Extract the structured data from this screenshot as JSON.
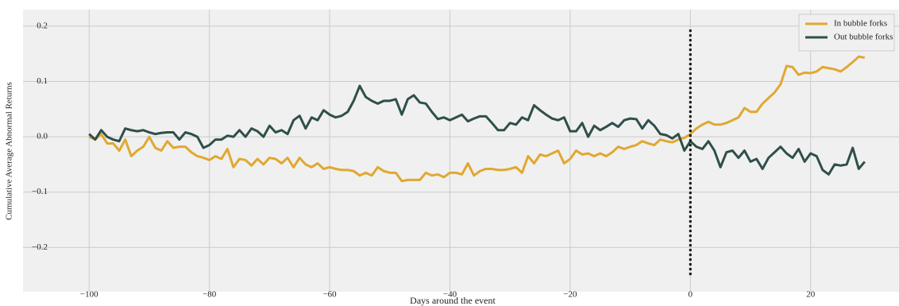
{
  "chart_data": {
    "type": "line",
    "x_label": "Days around the event",
    "y_label": "Cumulative Average Abnormal Returns",
    "x": [
      -100,
      -99,
      -98,
      -97,
      -96,
      -95,
      -94,
      -93,
      -92,
      -91,
      -90,
      -89,
      -88,
      -87,
      -86,
      -85,
      -84,
      -83,
      -82,
      -81,
      -80,
      -79,
      -78,
      -77,
      -76,
      -75,
      -74,
      -73,
      -72,
      -71,
      -70,
      -69,
      -68,
      -67,
      -66,
      -65,
      -64,
      -63,
      -62,
      -61,
      -60,
      -59,
      -58,
      -57,
      -56,
      -55,
      -54,
      -53,
      -52,
      -51,
      -50,
      -49,
      -48,
      -47,
      -46,
      -45,
      -44,
      -43,
      -42,
      -41,
      -40,
      -39,
      -38,
      -37,
      -36,
      -35,
      -34,
      -33,
      -32,
      -31,
      -30,
      -29,
      -28,
      -27,
      -26,
      -25,
      -24,
      -23,
      -22,
      -21,
      -20,
      -19,
      -18,
      -17,
      -16,
      -15,
      -14,
      -13,
      -12,
      -11,
      -10,
      -9,
      -8,
      -7,
      -6,
      -5,
      -4,
      -3,
      -2,
      -1,
      0,
      1,
      2,
      3,
      4,
      5,
      6,
      7,
      8,
      9,
      10,
      11,
      12,
      13,
      14,
      15,
      16,
      17,
      18,
      19,
      20,
      21,
      22,
      23,
      24,
      25,
      26,
      27,
      28,
      29
    ],
    "series": [
      {
        "name": "In bubble forks",
        "color": "#e0a830",
        "values": [
          0,
          -0.005,
          0.005,
          -0.012,
          -0.012,
          -0.025,
          -0.005,
          -0.035,
          -0.025,
          -0.018,
          0,
          -0.02,
          -0.025,
          -0.008,
          -0.02,
          -0.018,
          -0.018,
          -0.028,
          -0.035,
          -0.038,
          -0.042,
          -0.035,
          -0.04,
          -0.022,
          -0.055,
          -0.04,
          -0.042,
          -0.052,
          -0.04,
          -0.05,
          -0.038,
          -0.04,
          -0.048,
          -0.038,
          -0.055,
          -0.038,
          -0.05,
          -0.055,
          -0.048,
          -0.058,
          -0.055,
          -0.058,
          -0.06,
          -0.06,
          -0.062,
          -0.07,
          -0.065,
          -0.07,
          -0.055,
          -0.062,
          -0.065,
          -0.065,
          -0.08,
          -0.078,
          -0.078,
          -0.078,
          -0.065,
          -0.07,
          -0.068,
          -0.073,
          -0.065,
          -0.065,
          -0.068,
          -0.048,
          -0.07,
          -0.062,
          -0.058,
          -0.058,
          -0.06,
          -0.06,
          -0.058,
          -0.055,
          -0.065,
          -0.035,
          -0.048,
          -0.032,
          -0.035,
          -0.03,
          -0.025,
          -0.048,
          -0.04,
          -0.025,
          -0.032,
          -0.03,
          -0.035,
          -0.03,
          -0.035,
          -0.028,
          -0.018,
          -0.022,
          -0.018,
          -0.015,
          -0.008,
          -0.012,
          -0.015,
          -0.005,
          -0.008,
          -0.01,
          -0.005,
          -0.002,
          0.005,
          0.015,
          0.022,
          0.027,
          0.022,
          0.022,
          0.025,
          0.03,
          0.035,
          0.052,
          0.045,
          0.045,
          0.06,
          0.07,
          0.08,
          0.095,
          0.128,
          0.126,
          0.112,
          0.116,
          0.115,
          0.118,
          0.126,
          0.124,
          0.122,
          0.118,
          0.126,
          0.135,
          0.145,
          0.143
        ]
      },
      {
        "name": "Out bubble forks",
        "color": "#2f4f4a",
        "values": [
          0.005,
          -0.005,
          0.012,
          0,
          -0.005,
          -0.008,
          0.015,
          0.012,
          0.01,
          0.012,
          0.008,
          0.005,
          0.007,
          0.008,
          0.008,
          -0.005,
          0.008,
          0.005,
          0,
          -0.02,
          -0.015,
          -0.005,
          -0.005,
          0.002,
          0,
          0.012,
          0,
          0.015,
          0.01,
          0,
          0.02,
          0.008,
          0.012,
          0.005,
          0.03,
          0.038,
          0.015,
          0.035,
          0.03,
          0.048,
          0.04,
          0.035,
          0.038,
          0.045,
          0.065,
          0.092,
          0.072,
          0.065,
          0.06,
          0.065,
          0.065,
          0.068,
          0.04,
          0.068,
          0.075,
          0.062,
          0.06,
          0.045,
          0.032,
          0.035,
          0.03,
          0.035,
          0.04,
          0.028,
          0.033,
          0.037,
          0.037,
          0.025,
          0.012,
          0.012,
          0.025,
          0.022,
          0.035,
          0.03,
          0.057,
          0.048,
          0.04,
          0.033,
          0.03,
          0.035,
          0.01,
          0.01,
          0.025,
          0,
          0.02,
          0.012,
          0.018,
          0.025,
          0.018,
          0.03,
          0.033,
          0.032,
          0.015,
          0.03,
          0.02,
          0.005,
          0.003,
          -0.003,
          0.005,
          -0.025,
          -0.008,
          -0.018,
          -0.022,
          -0.008,
          -0.025,
          -0.055,
          -0.028,
          -0.025,
          -0.038,
          -0.025,
          -0.045,
          -0.04,
          -0.058,
          -0.038,
          -0.028,
          -0.018,
          -0.03,
          -0.038,
          -0.022,
          -0.045,
          -0.03,
          -0.035,
          -0.06,
          -0.068,
          -0.05,
          -0.052,
          -0.05,
          -0.02,
          -0.058,
          -0.045
        ]
      }
    ],
    "event_line": {
      "x": 0,
      "ymin": -0.25,
      "ymax": 0.195
    },
    "xlim": [
      -111,
      34.7
    ],
    "ylim": [
      -0.28,
      0.23
    ],
    "xticks": [
      {
        "value": -100,
        "label": "−100"
      },
      {
        "value": -80,
        "label": "−80"
      },
      {
        "value": -60,
        "label": "−60"
      },
      {
        "value": -40,
        "label": "−40"
      },
      {
        "value": -20,
        "label": "−20"
      },
      0,
      20
    ],
    "yticks": [
      {
        "value": -0.2,
        "label": "−0.2"
      },
      {
        "value": -0.1,
        "label": "−0.1"
      },
      {
        "value": 0,
        "label": "0.0"
      },
      0.1,
      0.2
    ],
    "grid": true,
    "legend": "upper right"
  }
}
